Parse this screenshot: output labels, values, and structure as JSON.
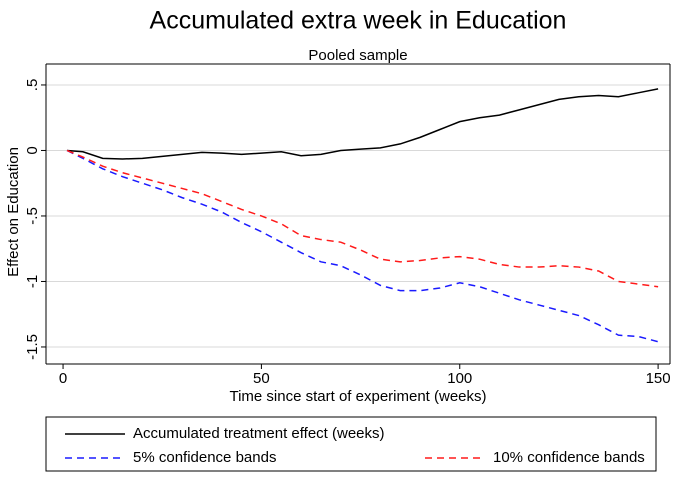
{
  "chart_data": {
    "type": "line",
    "title": "Accumulated extra week in Education",
    "subtitle": "Pooled sample",
    "x_label": "Time since start of experiment (weeks)",
    "y_label": "Effect on Education",
    "x": [
      1,
      5,
      10,
      15,
      20,
      25,
      30,
      35,
      40,
      45,
      50,
      55,
      60,
      65,
      70,
      75,
      80,
      85,
      90,
      95,
      100,
      105,
      110,
      115,
      120,
      125,
      130,
      135,
      140,
      145,
      150
    ],
    "series": [
      {
        "name": "Accumulated treatment effect (weeks)",
        "color": "#000000",
        "dash": "solid",
        "values": [
          0,
          -0.01,
          -0.06,
          -0.065,
          -0.06,
          -0.045,
          -0.03,
          -0.015,
          -0.02,
          -0.03,
          -0.02,
          -0.01,
          -0.04,
          -0.03,
          0.0,
          0.01,
          0.02,
          0.05,
          0.1,
          0.16,
          0.22,
          0.25,
          0.27,
          0.31,
          0.35,
          0.39,
          0.41,
          0.42,
          0.41,
          0.44,
          0.47
        ]
      },
      {
        "name": "5% confidence bands",
        "color": "#1a1aff",
        "dash": "dashed",
        "values": [
          0,
          -0.06,
          -0.14,
          -0.2,
          -0.25,
          -0.3,
          -0.36,
          -0.41,
          -0.47,
          -0.55,
          -0.62,
          -0.7,
          -0.78,
          -0.85,
          -0.88,
          -0.95,
          -1.03,
          -1.07,
          -1.07,
          -1.05,
          -1.01,
          -1.04,
          -1.09,
          -1.14,
          -1.18,
          -1.22,
          -1.26,
          -1.33,
          -1.41,
          -1.42,
          -1.46
        ]
      },
      {
        "name": "10% confidence bands",
        "color": "#ff1a1a",
        "dash": "dashed",
        "values": [
          0,
          -0.05,
          -0.12,
          -0.17,
          -0.21,
          -0.25,
          -0.29,
          -0.33,
          -0.39,
          -0.45,
          -0.5,
          -0.56,
          -0.65,
          -0.68,
          -0.7,
          -0.76,
          -0.83,
          -0.85,
          -0.84,
          -0.82,
          -0.81,
          -0.83,
          -0.87,
          -0.89,
          -0.89,
          -0.88,
          -0.89,
          -0.92,
          -1.0,
          -1.02,
          -1.04
        ]
      }
    ],
    "xlim": [
      -4.3,
      153
    ],
    "xticks": [
      0,
      50,
      100,
      150
    ],
    "ylim": [
      -1.63,
      0.66
    ],
    "yticks": [
      {
        "value": 0.5,
        "label": ".5"
      },
      0,
      {
        "value": -0.5,
        "label": "-.5"
      },
      -1,
      {
        "value": -1.5,
        "label": "-1.5"
      }
    ],
    "grid": true,
    "legend_position": "bottom"
  }
}
